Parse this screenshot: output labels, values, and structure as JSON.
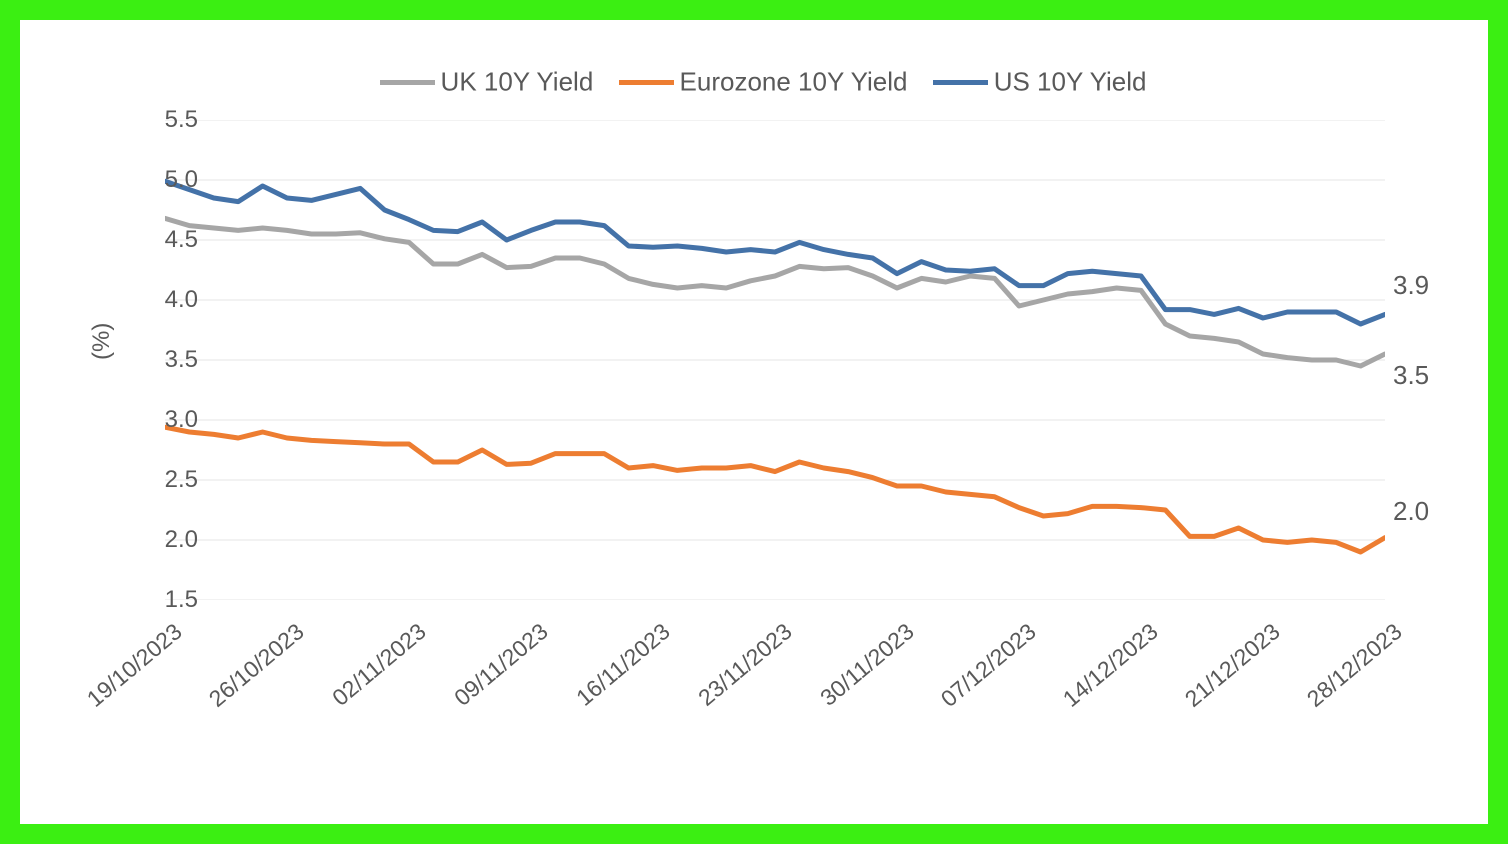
{
  "chart": {
    "type": "line",
    "border_color": "#3bef12",
    "background_color": "#ffffff",
    "grid_color": "#e6e6e6",
    "text_color": "#595959",
    "line_width": 5,
    "title_fontsize": 26,
    "label_fontsize": 24,
    "tick_fontsize": 24,
    "ylabel": "(%)",
    "ylim": [
      1.5,
      5.5
    ],
    "ytick_step": 0.5,
    "yticks": [
      "1.5",
      "2.0",
      "2.5",
      "3.0",
      "3.5",
      "4.0",
      "4.5",
      "5.0",
      "5.5"
    ],
    "xticks": [
      "19/10/2023",
      "26/10/2023",
      "02/11/2023",
      "09/11/2023",
      "16/11/2023",
      "23/11/2023",
      "30/11/2023",
      "07/12/2023",
      "14/12/2023",
      "21/12/2023",
      "28/12/2023"
    ],
    "x_count": 51,
    "legend": [
      {
        "label": "UK 10Y Yield",
        "color": "#a6a6a6"
      },
      {
        "label": "Eurozone 10Y Yield",
        "color": "#ed7d31"
      },
      {
        "label": "US 10Y Yield",
        "color": "#4472a8"
      }
    ],
    "series": {
      "uk": {
        "label": "UK 10Y Yield",
        "color": "#a6a6a6",
        "end_label": "3.5",
        "values": [
          4.68,
          4.62,
          4.6,
          4.58,
          4.6,
          4.58,
          4.55,
          4.55,
          4.56,
          4.51,
          4.48,
          4.3,
          4.3,
          4.38,
          4.27,
          4.28,
          4.35,
          4.35,
          4.3,
          4.18,
          4.13,
          4.1,
          4.12,
          4.1,
          4.16,
          4.2,
          4.28,
          4.26,
          4.27,
          4.2,
          4.1,
          4.18,
          4.15,
          4.2,
          4.18,
          3.95,
          4.0,
          4.05,
          4.07,
          4.1,
          4.08,
          3.8,
          3.7,
          3.68,
          3.65,
          3.55,
          3.52,
          3.5,
          3.5,
          3.45,
          3.55
        ]
      },
      "euro": {
        "label": "Eurozone 10Y Yield",
        "color": "#ed7d31",
        "end_label": "2.0",
        "values": [
          2.94,
          2.9,
          2.88,
          2.85,
          2.9,
          2.85,
          2.83,
          2.82,
          2.81,
          2.8,
          2.8,
          2.65,
          2.65,
          2.75,
          2.63,
          2.64,
          2.72,
          2.72,
          2.72,
          2.6,
          2.62,
          2.58,
          2.6,
          2.6,
          2.62,
          2.57,
          2.65,
          2.6,
          2.57,
          2.52,
          2.45,
          2.45,
          2.4,
          2.38,
          2.36,
          2.27,
          2.2,
          2.22,
          2.28,
          2.28,
          2.27,
          2.25,
          2.03,
          2.03,
          2.1,
          2.0,
          1.98,
          2.0,
          1.98,
          1.9,
          2.02
        ]
      },
      "us": {
        "label": "US 10Y Yield",
        "color": "#4472a8",
        "end_label": "3.9",
        "values": [
          4.99,
          4.92,
          4.85,
          4.82,
          4.95,
          4.85,
          4.83,
          4.88,
          4.93,
          4.75,
          4.67,
          4.58,
          4.57,
          4.65,
          4.5,
          4.58,
          4.65,
          4.65,
          4.62,
          4.45,
          4.44,
          4.45,
          4.43,
          4.4,
          4.42,
          4.4,
          4.48,
          4.42,
          4.38,
          4.35,
          4.22,
          4.32,
          4.25,
          4.24,
          4.26,
          4.12,
          4.12,
          4.22,
          4.24,
          4.22,
          4.2,
          3.92,
          3.92,
          3.88,
          3.93,
          3.85,
          3.9,
          3.9,
          3.9,
          3.8,
          3.88
        ]
      }
    }
  }
}
